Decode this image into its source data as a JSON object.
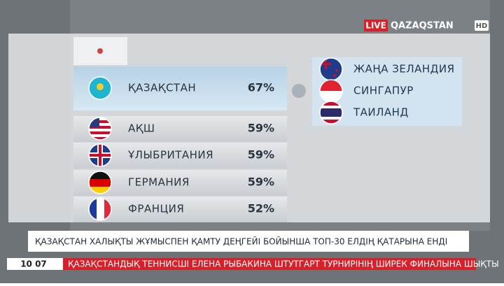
{
  "logo": {
    "live": "LIVE",
    "channel": "QAZAQSTAN",
    "hd": "HD"
  },
  "ranking": [
    {
      "country": "ҚАЗАҚСТАН",
      "value": "67%"
    },
    {
      "country": "АҚШ",
      "value": "59%"
    },
    {
      "country": "ҰЛЫБРИТАНИЯ",
      "value": "59%"
    },
    {
      "country": "ГЕРМАНИЯ",
      "value": "59%"
    },
    {
      "country": "ФРАНЦИЯ",
      "value": "52%"
    }
  ],
  "other_countries": [
    "ЖАҢА ЗЕЛАНДИЯ",
    "СИНГАПУР",
    "ТАИЛАНД"
  ],
  "headline": "ҚАЗАҚСТАН ХАЛЫҚТЫ ЖҰМЫСПЕН ҚАМТУ ДЕҢГЕЙІ БОЙЫНША ТОП-30 ЕЛДІҢ ҚАТАРЫНА ЕНДІ",
  "clock": "10 07",
  "ticker": "ҚАЗАҚСТАНДЫҚ ТЕННИСШІ ЕЛЕНА РЫБАКИНА ШТУТГАРТ ТУРНИРІНІҢ ШИРЕК ФИНАЛЫНА ШЫҚТЫ"
}
